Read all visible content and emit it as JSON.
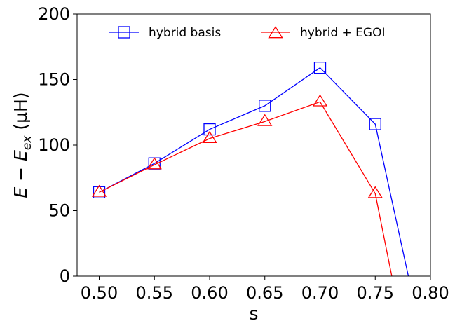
{
  "chart_data": {
    "type": "line",
    "xlabel": "s",
    "ylabel": {
      "main": "E − E",
      "sub": "ex",
      "unit": " (μH)"
    },
    "xlim": [
      0.48,
      0.8
    ],
    "ylim": [
      0,
      200
    ],
    "x_ticks": [
      0.5,
      0.55,
      0.6,
      0.65,
      0.7,
      0.75,
      0.8
    ],
    "x_tick_labels": [
      "0.50",
      "0.55",
      "0.60",
      "0.65",
      "0.70",
      "0.75",
      "0.80"
    ],
    "y_ticks": [
      0,
      50,
      100,
      150,
      200
    ],
    "y_tick_labels": [
      "0",
      "50",
      "100",
      "150",
      "200"
    ],
    "grid": false,
    "legend_position": "top-center",
    "series": [
      {
        "name": "hybrid basis",
        "color": "#0000ff",
        "marker": "square",
        "x": [
          0.5,
          0.55,
          0.6,
          0.65,
          0.7,
          0.75,
          0.78
        ],
        "y": [
          64,
          86,
          112,
          130,
          159,
          116,
          0
        ],
        "marker_count": 6
      },
      {
        "name": "hybrid + EGOI",
        "color": "#ff0000",
        "marker": "triangle",
        "x": [
          0.5,
          0.55,
          0.6,
          0.65,
          0.7,
          0.75,
          0.765
        ],
        "y": [
          64,
          85,
          105,
          118,
          133,
          63,
          0
        ],
        "marker_count": 6
      }
    ]
  }
}
